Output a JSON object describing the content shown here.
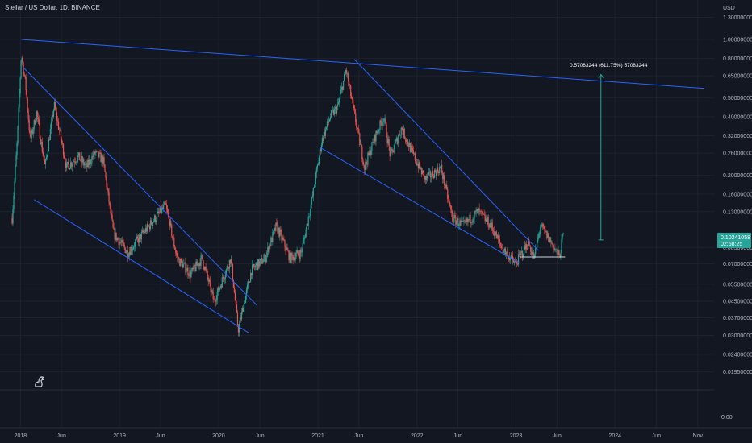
{
  "header": {
    "symbol_title": "Stellar / US Dollar, 1D, BINANCE"
  },
  "price_axis": {
    "currency": "USD",
    "ticks": [
      "1.30000000",
      "1.00000000",
      "0.80000000",
      "0.65000000",
      "0.50000000",
      "0.40000000",
      "0.32000000",
      "0.26000000",
      "0.20000000",
      "0.16000000",
      "0.13000000",
      "0.08500000",
      "0.07000000",
      "0.05500000",
      "0.04500000",
      "0.03700000",
      "0.03000000",
      "0.02400000",
      "0.01950000"
    ],
    "last_price": "0.10241058",
    "countdown": "02:58:25"
  },
  "sub_pane_axis": {
    "tick": "0.00"
  },
  "time_axis": {
    "ticks": [
      "2018",
      "Jun",
      "2019",
      "Jun",
      "2020",
      "Jun",
      "2021",
      "Jun",
      "2022",
      "Jun",
      "2023",
      "Jun",
      "2024",
      "Jun",
      "Nov"
    ]
  },
  "measure_label": "0.57083244 (611.75%) 57083244",
  "colors": {
    "background": "#131722",
    "up": "#26a69a",
    "down": "#ef5350",
    "trendline": "#2962ff",
    "measure": "#26a69a",
    "price_badge": "#26a69a"
  },
  "chart_data": {
    "type": "candlestick",
    "symbol": "XLMUSD",
    "interval": "1D",
    "exchange": "BINANCE",
    "y_scale": "log",
    "ylim": [
      0.018,
      1.45
    ],
    "xlim": [
      "2017-12-01",
      "2024-12-31"
    ],
    "price_path": [
      {
        "date": "2017-12-01",
        "close": 0.12
      },
      {
        "date": "2017-12-20",
        "close": 0.3
      },
      {
        "date": "2018-01-04",
        "close": 0.85
      },
      {
        "date": "2018-01-20",
        "close": 0.58
      },
      {
        "date": "2018-02-06",
        "close": 0.3
      },
      {
        "date": "2018-03-01",
        "close": 0.42
      },
      {
        "date": "2018-04-01",
        "close": 0.22
      },
      {
        "date": "2018-05-05",
        "close": 0.46
      },
      {
        "date": "2018-06-20",
        "close": 0.22
      },
      {
        "date": "2018-08-01",
        "close": 0.25
      },
      {
        "date": "2018-09-01",
        "close": 0.22
      },
      {
        "date": "2018-10-01",
        "close": 0.26
      },
      {
        "date": "2018-11-01",
        "close": 0.24
      },
      {
        "date": "2018-12-10",
        "close": 0.1
      },
      {
        "date": "2019-02-01",
        "close": 0.08
      },
      {
        "date": "2019-03-01",
        "close": 0.09
      },
      {
        "date": "2019-04-20",
        "close": 0.11
      },
      {
        "date": "2019-06-20",
        "close": 0.14
      },
      {
        "date": "2019-08-01",
        "close": 0.075
      },
      {
        "date": "2019-09-20",
        "close": 0.062
      },
      {
        "date": "2019-11-01",
        "close": 0.075
      },
      {
        "date": "2019-12-15",
        "close": 0.045
      },
      {
        "date": "2020-02-15",
        "close": 0.075
      },
      {
        "date": "2020-03-13",
        "close": 0.032
      },
      {
        "date": "2020-05-01",
        "close": 0.065
      },
      {
        "date": "2020-06-20",
        "close": 0.075
      },
      {
        "date": "2020-08-01",
        "close": 0.11
      },
      {
        "date": "2020-09-20",
        "close": 0.075
      },
      {
        "date": "2020-11-01",
        "close": 0.08
      },
      {
        "date": "2020-12-10",
        "close": 0.15
      },
      {
        "date": "2021-01-15",
        "close": 0.3
      },
      {
        "date": "2021-02-15",
        "close": 0.4
      },
      {
        "date": "2021-03-15",
        "close": 0.45
      },
      {
        "date": "2021-04-15",
        "close": 0.7
      },
      {
        "date": "2021-05-20",
        "close": 0.38
      },
      {
        "date": "2021-06-22",
        "close": 0.22
      },
      {
        "date": "2021-08-01",
        "close": 0.32
      },
      {
        "date": "2021-09-01",
        "close": 0.4
      },
      {
        "date": "2021-09-25",
        "close": 0.25
      },
      {
        "date": "2021-11-05",
        "close": 0.35
      },
      {
        "date": "2021-12-15",
        "close": 0.26
      },
      {
        "date": "2022-02-01",
        "close": 0.19
      },
      {
        "date": "2022-03-30",
        "close": 0.22
      },
      {
        "date": "2022-05-12",
        "close": 0.12
      },
      {
        "date": "2022-06-20",
        "close": 0.11
      },
      {
        "date": "2022-08-14",
        "close": 0.13
      },
      {
        "date": "2022-10-01",
        "close": 0.11
      },
      {
        "date": "2022-11-09",
        "close": 0.085
      },
      {
        "date": "2022-12-30",
        "close": 0.07
      },
      {
        "date": "2023-02-15",
        "close": 0.09
      },
      {
        "date": "2023-03-10",
        "close": 0.075
      },
      {
        "date": "2023-04-01",
        "close": 0.11
      },
      {
        "date": "2023-05-01",
        "close": 0.095
      },
      {
        "date": "2023-06-10",
        "close": 0.076
      },
      {
        "date": "2023-06-25",
        "close": 0.102
      }
    ],
    "annotations": [
      {
        "type": "trendline",
        "points": [
          {
            "date": "2018-01-04",
            "price": 1.0
          },
          {
            "date": "2024-11-25",
            "price": 0.56
          }
        ]
      },
      {
        "type": "trendline",
        "points": [
          {
            "date": "2018-01-10",
            "price": 0.72
          },
          {
            "date": "2020-05-20",
            "price": 0.043
          }
        ]
      },
      {
        "type": "trendline",
        "points": [
          {
            "date": "2018-02-20",
            "price": 0.15
          },
          {
            "date": "2020-04-20",
            "price": 0.031
          }
        ]
      },
      {
        "type": "trendline",
        "points": [
          {
            "date": "2021-05-15",
            "price": 0.79
          },
          {
            "date": "2023-03-25",
            "price": 0.082
          }
        ]
      },
      {
        "type": "trendline",
        "points": [
          {
            "date": "2021-01-05",
            "price": 0.28
          },
          {
            "date": "2023-01-12",
            "price": 0.071
          }
        ]
      },
      {
        "type": "horizontal_segment",
        "price": 0.076,
        "from": "2023-01-15",
        "to": "2023-07-01"
      },
      {
        "type": "price_range",
        "price_from": 0.093,
        "price_to": 0.66,
        "date": "2023-11-10",
        "label": "0.57083244 (611.75%) 57083244"
      }
    ]
  }
}
